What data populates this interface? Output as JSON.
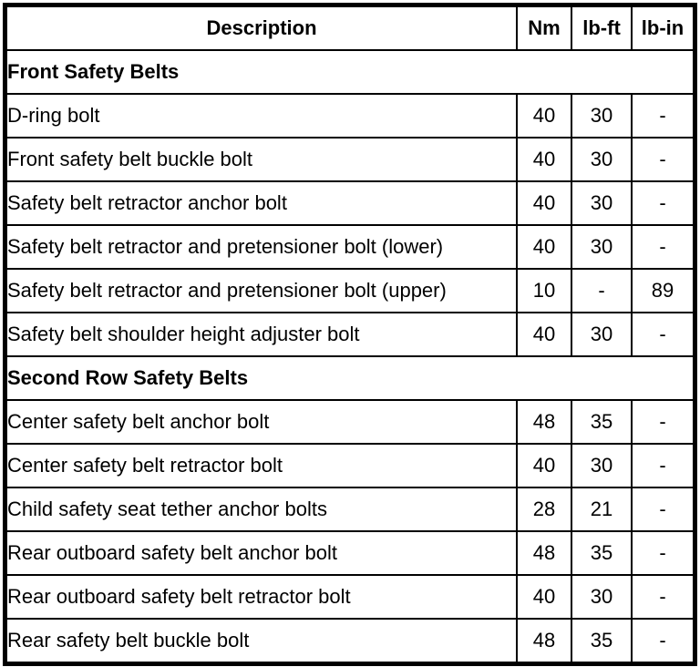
{
  "table": {
    "columns": {
      "description": "Description",
      "nm": "Nm",
      "lbft": "lb-ft",
      "lbin": "lb-in"
    },
    "sections": [
      {
        "title": "Front Safety Belts",
        "rows": [
          {
            "description": "D-ring bolt",
            "nm": "40",
            "lbft": "30",
            "lbin": "-"
          },
          {
            "description": "Front safety belt buckle bolt",
            "nm": "40",
            "lbft": "30",
            "lbin": "-"
          },
          {
            "description": "Safety belt retractor anchor bolt",
            "nm": "40",
            "lbft": "30",
            "lbin": "-"
          },
          {
            "description": "Safety belt retractor and pretensioner bolt (lower)",
            "nm": "40",
            "lbft": "30",
            "lbin": "-"
          },
          {
            "description": "Safety belt retractor and pretensioner bolt (upper)",
            "nm": "10",
            "lbft": "-",
            "lbin": "89"
          },
          {
            "description": "Safety belt shoulder height adjuster bolt",
            "nm": "40",
            "lbft": "30",
            "lbin": "-"
          }
        ]
      },
      {
        "title": "Second Row Safety Belts",
        "rows": [
          {
            "description": "Center safety belt anchor bolt",
            "nm": "48",
            "lbft": "35",
            "lbin": "-"
          },
          {
            "description": "Center safety belt retractor bolt",
            "nm": "40",
            "lbft": "30",
            "lbin": "-"
          },
          {
            "description": "Child safety seat tether anchor bolts",
            "nm": "28",
            "lbft": "21",
            "lbin": "-"
          },
          {
            "description": "Rear outboard safety belt anchor bolt",
            "nm": "48",
            "lbft": "35",
            "lbin": "-"
          },
          {
            "description": "Rear outboard safety belt retractor bolt",
            "nm": "40",
            "lbft": "30",
            "lbin": "-"
          },
          {
            "description": "Rear safety belt buckle bolt",
            "nm": "48",
            "lbft": "35",
            "lbin": "-"
          }
        ]
      }
    ],
    "colors": {
      "border": "#000000",
      "text": "#000000",
      "background": "#ffffff"
    }
  }
}
